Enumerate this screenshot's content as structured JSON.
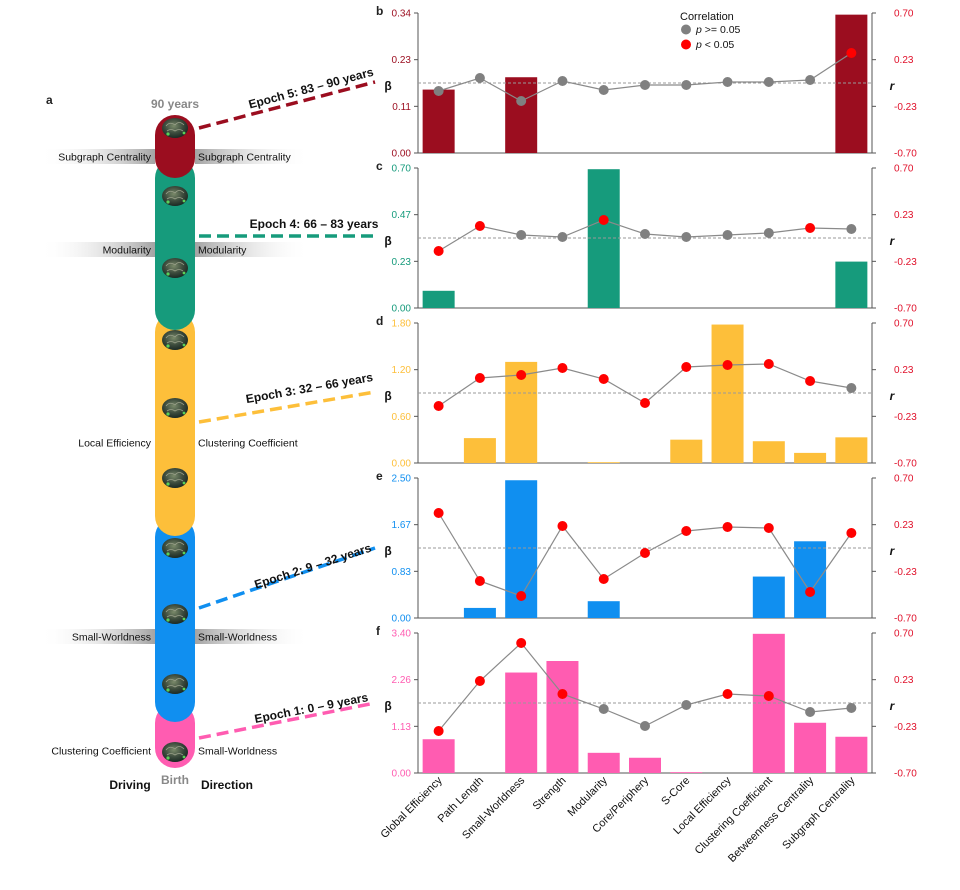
{
  "figure": {
    "panel_a_letter": "a",
    "age_top": "90 years",
    "age_bottom": "Birth",
    "driving_label": "Driving",
    "direction_label": "Direction",
    "epochs": [
      {
        "label": "Epoch 5: 83 – 90 years",
        "color": "#9b0d1f",
        "driving": [
          "Subgraph Centrality"
        ],
        "direction": [
          "Subgraph Centrality"
        ]
      },
      {
        "label": "Epoch 4: 66 – 83 years",
        "color": "#169b7c",
        "driving": [
          "Modularity"
        ],
        "direction": [
          "Modularity"
        ]
      },
      {
        "label": "Epoch 3: 32 – 66 years",
        "color": "#fdbf3a",
        "driving": [
          "Local Efficiency"
        ],
        "direction": [
          "Clustering Coefficient"
        ]
      },
      {
        "label": "Epoch 2: 9 – 32 years",
        "color": "#108ff0",
        "driving": [
          "Small-Worldness"
        ],
        "direction": [
          "Small-Worldness"
        ]
      },
      {
        "label": "Epoch 1: 0 – 9 years",
        "color": "#ff5cb1",
        "driving": [
          "Clustering Coefficient"
        ],
        "direction": [
          "Small-Worldness"
        ]
      }
    ]
  },
  "legend": {
    "title": "Correlation",
    "items": [
      {
        "label": "p >= 0.05",
        "color": "#808080"
      },
      {
        "label": "p < 0.05",
        "color": "#ff0000"
      }
    ]
  },
  "chart_data": {
    "type": "bar",
    "categories": [
      "Global Efficiency",
      "Path Length",
      "Small-Worldness",
      "Strength",
      "Modularity",
      "Core/Periphery",
      "S-Core",
      "Local Efficiency",
      "Clustering Coefficient",
      "Betweenness Centrality",
      "Subgraph Centrality"
    ],
    "left_axis_label": "β",
    "right_axis_label": "r",
    "r_range": [
      -0.7,
      0.7
    ],
    "r_ticks": [
      "0.70",
      "0.23",
      "-0.23",
      "-0.70"
    ],
    "panels": [
      {
        "letter": "b",
        "color": "#9b0d1f",
        "beta_ticks": [
          "0.34",
          "0.23",
          "0.11",
          "0.00"
        ],
        "beta_max": 0.34,
        "beta": [
          0.154,
          0,
          0.184,
          0,
          0,
          0,
          0,
          0,
          0,
          0,
          0.336
        ],
        "r": [
          -0.08,
          0.05,
          -0.18,
          0.02,
          -0.07,
          -0.02,
          -0.02,
          0.01,
          0.01,
          0.03,
          0.3
        ],
        "significant": [
          false,
          false,
          false,
          false,
          false,
          false,
          false,
          false,
          false,
          false,
          true
        ]
      },
      {
        "letter": "c",
        "color": "#169b7c",
        "beta_ticks": [
          "0.70",
          "0.47",
          "0.23",
          "0.00"
        ],
        "beta_max": 0.7,
        "beta": [
          0.086,
          0,
          0,
          0,
          0.694,
          0,
          0,
          0,
          0,
          0,
          0.232
        ],
        "r": [
          -0.13,
          0.12,
          0.03,
          0.01,
          0.18,
          0.04,
          0.01,
          0.03,
          0.05,
          0.1,
          0.09
        ],
        "significant": [
          true,
          true,
          false,
          false,
          true,
          false,
          false,
          false,
          false,
          true,
          false
        ]
      },
      {
        "letter": "d",
        "color": "#fdbf3a",
        "beta_ticks": [
          "1.80",
          "1.20",
          "0.60",
          "0.00"
        ],
        "beta_max": 1.8,
        "beta": [
          0,
          0.32,
          1.3,
          0,
          0.01,
          0,
          0.3,
          1.78,
          0.28,
          0.13,
          0.33
        ],
        "r": [
          -0.13,
          0.15,
          0.18,
          0.25,
          0.14,
          -0.1,
          0.26,
          0.28,
          0.29,
          0.12,
          0.05
        ],
        "significant": [
          true,
          true,
          true,
          true,
          true,
          true,
          true,
          true,
          true,
          true,
          false
        ]
      },
      {
        "letter": "e",
        "color": "#108ff0",
        "beta_ticks": [
          "2.50",
          "1.67",
          "0.83",
          "0.00"
        ],
        "beta_max": 2.5,
        "beta": [
          0,
          0.18,
          2.46,
          0,
          0.3,
          0,
          0,
          0,
          0.74,
          1.37,
          0
        ],
        "r": [
          0.35,
          -0.33,
          -0.48,
          0.22,
          -0.31,
          -0.05,
          0.17,
          0.21,
          0.2,
          -0.44,
          0.15
        ],
        "significant": [
          true,
          true,
          true,
          true,
          true,
          true,
          true,
          true,
          true,
          true,
          true
        ]
      },
      {
        "letter": "f",
        "color": "#ff5cb1",
        "beta_ticks": [
          "3.40",
          "2.26",
          "1.13",
          "0.00"
        ],
        "beta_max": 3.4,
        "beta": [
          0.82,
          0,
          2.44,
          2.72,
          0.49,
          0.37,
          0.02,
          0,
          3.38,
          1.22,
          0.88
        ],
        "r": [
          -0.28,
          0.22,
          0.6,
          0.09,
          -0.06,
          -0.23,
          -0.02,
          0.09,
          0.07,
          -0.09,
          -0.05
        ],
        "significant": [
          true,
          true,
          true,
          true,
          false,
          false,
          false,
          true,
          true,
          false,
          false
        ]
      }
    ]
  }
}
